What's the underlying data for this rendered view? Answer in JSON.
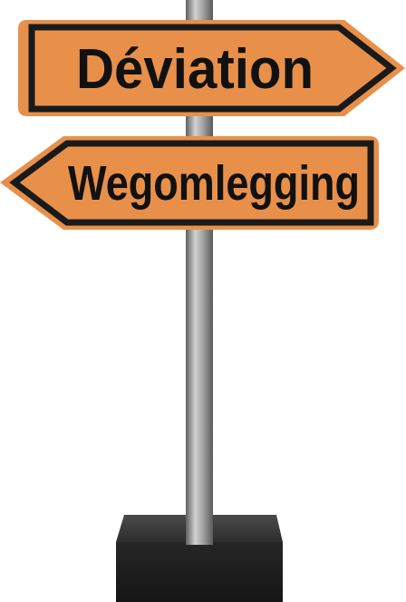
{
  "signs": {
    "top": {
      "label": "Déviation",
      "direction": "right"
    },
    "bottom": {
      "label": "Wegomlegging",
      "direction": "left"
    }
  },
  "colors": {
    "sign_fill": "#E8904A",
    "sign_border": "#1A1A1A",
    "text": "#111111",
    "pole_light": "#C8C8C8",
    "pole_dark": "#6E6E6E",
    "base_top": "#3A3A3A",
    "base_front": "#1E1E1E"
  },
  "icons": {
    "top_arrow": "arrow-right-icon",
    "bottom_arrow": "arrow-left-icon"
  }
}
